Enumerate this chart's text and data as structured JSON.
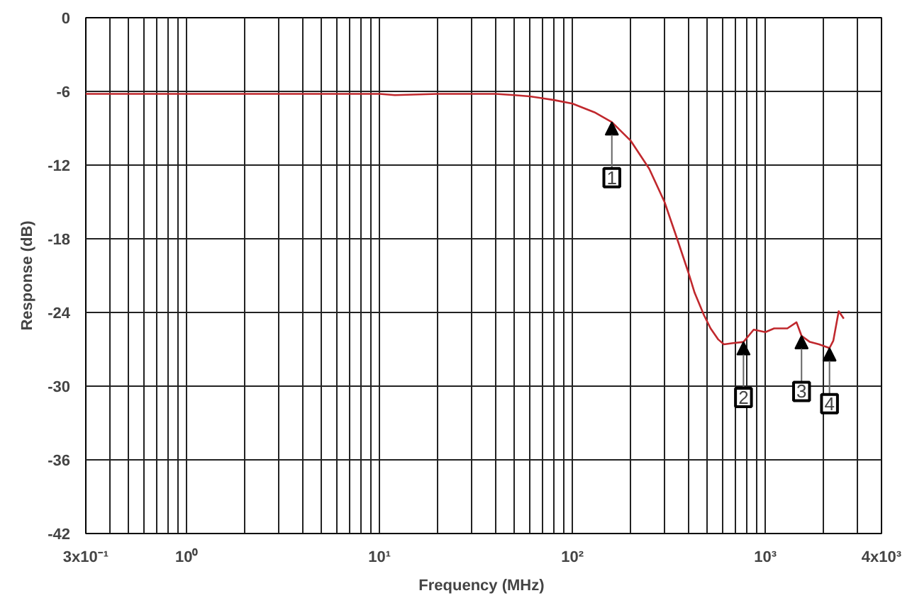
{
  "chart_data": {
    "type": "line",
    "xlabel": "Frequency  (MHz)",
    "ylabel": "Response (dB)",
    "log": "x",
    "grid": true,
    "marker": "none",
    "line_style": "solid",
    "series": [
      {
        "color": "#c0282d",
        "x": [
          0.3,
          0.5,
          1,
          2,
          5,
          10,
          12,
          20,
          40,
          50,
          60,
          80,
          100,
          130,
          160,
          200,
          250,
          300,
          347,
          400,
          430,
          480,
          520,
          570,
          610,
          680,
          770,
          870,
          1000,
          1110,
          1300,
          1450,
          1540,
          1700,
          1900,
          2150,
          2250,
          2400,
          2550
        ],
        "values": [
          -6.2,
          -6.2,
          -6.2,
          -6.2,
          -6.2,
          -6.2,
          -6.3,
          -6.2,
          -6.2,
          -6.3,
          -6.4,
          -6.7,
          -7.0,
          -7.7,
          -8.5,
          -10.0,
          -12.3,
          -15.0,
          -17.9,
          -20.8,
          -22.4,
          -24.2,
          -25.3,
          -26.2,
          -26.6,
          -26.5,
          -26.4,
          -25.4,
          -25.6,
          -25.3,
          -25.3,
          -24.8,
          -25.9,
          -26.4,
          -26.6,
          -26.9,
          -26.3,
          -23.9,
          -24.5
        ]
      }
    ],
    "annotations": [
      {
        "text": "1",
        "x": 160,
        "y": -8.5
      },
      {
        "text": "2",
        "x": 770,
        "y": -26.4
      },
      {
        "text": "3",
        "x": 1540,
        "y": -25.9
      },
      {
        "text": "4",
        "x": 2150,
        "y": -26.9
      }
    ],
    "xlim": [
      0.3,
      4000
    ],
    "ylim": [
      -42,
      0
    ],
    "yticks": [
      0,
      -6,
      -12,
      -18,
      -24,
      -30,
      -36,
      -42
    ],
    "xticks": [
      {
        "value": 0.3,
        "label": "3x10⁻¹"
      },
      {
        "value": 0.4,
        "label": null
      },
      {
        "value": 0.5,
        "label": null
      },
      {
        "value": 0.6,
        "label": null
      },
      {
        "value": 0.7,
        "label": null
      },
      {
        "value": 0.8,
        "label": null
      },
      {
        "value": 0.9,
        "label": null
      },
      {
        "value": 1,
        "label": "10⁰"
      },
      {
        "value": 2,
        "label": null
      },
      {
        "value": 3,
        "label": null
      },
      {
        "value": 4,
        "label": null
      },
      {
        "value": 5,
        "label": null
      },
      {
        "value": 6,
        "label": null
      },
      {
        "value": 7,
        "label": null
      },
      {
        "value": 8,
        "label": null
      },
      {
        "value": 9,
        "label": null
      },
      {
        "value": 10,
        "label": "10¹"
      },
      {
        "value": 20,
        "label": null
      },
      {
        "value": 30,
        "label": null
      },
      {
        "value": 40,
        "label": null
      },
      {
        "value": 50,
        "label": null
      },
      {
        "value": 60,
        "label": null
      },
      {
        "value": 70,
        "label": null
      },
      {
        "value": 80,
        "label": null
      },
      {
        "value": 90,
        "label": null
      },
      {
        "value": 100,
        "label": "10²"
      },
      {
        "value": 200,
        "label": null
      },
      {
        "value": 300,
        "label": null
      },
      {
        "value": 400,
        "label": null
      },
      {
        "value": 500,
        "label": null
      },
      {
        "value": 600,
        "label": null
      },
      {
        "value": 700,
        "label": null
      },
      {
        "value": 800,
        "label": null
      },
      {
        "value": 900,
        "label": null
      },
      {
        "value": 1000,
        "label": "10³"
      },
      {
        "value": 2000,
        "label": null
      },
      {
        "value": 3000,
        "label": null
      },
      {
        "value": 4000,
        "label": "4x10³"
      }
    ]
  }
}
